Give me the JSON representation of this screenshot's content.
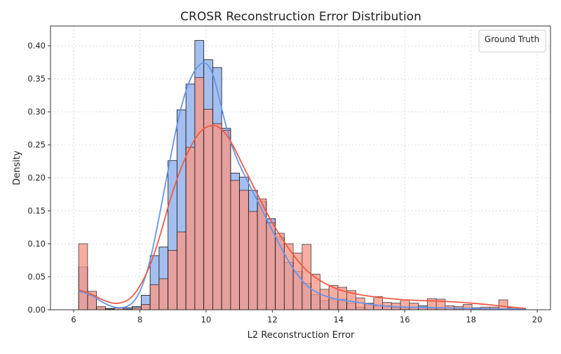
{
  "chart_data": {
    "type": "histogram",
    "title": "CROSR Reconstruction Error Distribution",
    "xlabel": "L2 Reconstruction Error",
    "ylabel": "Density",
    "xlim": [
      5.3,
      20.4
    ],
    "ylim": [
      0,
      0.43
    ],
    "xticks": [
      6,
      8,
      10,
      12,
      14,
      16,
      18,
      20
    ],
    "yticks": [
      0.0,
      0.05,
      0.1,
      0.15,
      0.2,
      0.25,
      0.3,
      0.35,
      0.4
    ],
    "bins": [
      6.15,
      6.42,
      6.69,
      6.96,
      7.23,
      7.5,
      7.77,
      8.04,
      8.31,
      8.58,
      8.85,
      9.12,
      9.39,
      9.66,
      9.93,
      10.2,
      10.47,
      10.74,
      11.01,
      11.28,
      11.55,
      11.82,
      12.09,
      12.36,
      12.63,
      12.9,
      13.17,
      13.44,
      13.71,
      13.98,
      14.25,
      14.52,
      14.79,
      15.06,
      15.33,
      15.6,
      15.87,
      16.14,
      16.41,
      16.68,
      16.95,
      17.22,
      17.49,
      17.76,
      18.03,
      18.3,
      18.57,
      18.84,
      19.11,
      19.38,
      19.65
    ],
    "legend": {
      "title": "Ground Truth",
      "position": "upper right"
    },
    "grid": true,
    "series": [
      {
        "color": "#6495ED",
        "fill": "#A4BFEF",
        "densities": [
          0.065,
          0.022,
          0.003,
          0.002,
          0.002,
          0.003,
          0.005,
          0.022,
          0.082,
          0.095,
          0.226,
          0.303,
          0.342,
          0.408,
          0.379,
          0.367,
          0.275,
          0.207,
          0.201,
          0.181,
          0.164,
          0.138,
          0.11,
          0.072,
          0.058,
          0.04,
          0.023,
          0.014,
          0.016,
          0.016,
          0.01,
          0.004,
          0.009,
          0.006,
          0.006,
          0.003,
          0.002,
          0.003,
          0.006,
          0.002,
          0.002,
          0.003,
          0.001,
          0.002,
          0.002,
          0.002,
          0.002,
          0.001,
          0.001,
          0.001
        ]
      },
      {
        "color": "#EE5A45",
        "fill": "#F7998A",
        "densities": [
          0.1,
          0.028,
          0.005,
          0.001,
          0.003,
          0.001,
          0.003,
          0.008,
          0.038,
          0.047,
          0.09,
          0.118,
          0.246,
          0.352,
          0.304,
          0.282,
          0.272,
          0.196,
          0.181,
          0.149,
          0.168,
          0.132,
          0.116,
          0.1,
          0.086,
          0.099,
          0.054,
          0.031,
          0.037,
          0.034,
          0.029,
          0.018,
          0.01,
          0.02,
          0.011,
          0.01,
          0.015,
          0.01,
          0.003,
          0.017,
          0.016,
          0.006,
          0.005,
          0.008,
          0.003,
          0.004,
          0.004,
          0.015,
          0.003,
          0.002
        ]
      }
    ],
    "kde": [
      {
        "color": "#6495ED",
        "points": [
          [
            6.15,
            0.028
          ],
          [
            6.5,
            0.024
          ],
          [
            6.9,
            0.01
          ],
          [
            7.3,
            0.002
          ],
          [
            7.7,
            0.005
          ],
          [
            8.0,
            0.025
          ],
          [
            8.3,
            0.07
          ],
          [
            8.6,
            0.145
          ],
          [
            8.9,
            0.225
          ],
          [
            9.2,
            0.3
          ],
          [
            9.5,
            0.35
          ],
          [
            9.8,
            0.373
          ],
          [
            10.0,
            0.375
          ],
          [
            10.2,
            0.36
          ],
          [
            10.4,
            0.32
          ],
          [
            10.6,
            0.278
          ],
          [
            10.8,
            0.245
          ],
          [
            11.0,
            0.22
          ],
          [
            11.3,
            0.19
          ],
          [
            11.6,
            0.16
          ],
          [
            11.9,
            0.13
          ],
          [
            12.2,
            0.1
          ],
          [
            12.5,
            0.072
          ],
          [
            12.8,
            0.05
          ],
          [
            13.1,
            0.033
          ],
          [
            13.5,
            0.022
          ],
          [
            14.0,
            0.015
          ],
          [
            14.5,
            0.012
          ],
          [
            15.0,
            0.008
          ],
          [
            15.5,
            0.005
          ],
          [
            16.0,
            0.004
          ],
          [
            17.0,
            0.003
          ],
          [
            18.0,
            0.002
          ],
          [
            19.0,
            0.001
          ],
          [
            19.65,
            0.001
          ]
        ]
      },
      {
        "color": "#EE5A45",
        "points": [
          [
            6.15,
            0.03
          ],
          [
            6.5,
            0.025
          ],
          [
            6.9,
            0.014
          ],
          [
            7.3,
            0.008
          ],
          [
            7.7,
            0.015
          ],
          [
            8.0,
            0.035
          ],
          [
            8.3,
            0.065
          ],
          [
            8.6,
            0.11
          ],
          [
            8.9,
            0.165
          ],
          [
            9.2,
            0.21
          ],
          [
            9.5,
            0.245
          ],
          [
            9.8,
            0.27
          ],
          [
            10.1,
            0.28
          ],
          [
            10.4,
            0.278
          ],
          [
            10.7,
            0.26
          ],
          [
            11.0,
            0.23
          ],
          [
            11.3,
            0.2
          ],
          [
            11.6,
            0.17
          ],
          [
            11.9,
            0.14
          ],
          [
            12.2,
            0.115
          ],
          [
            12.5,
            0.092
          ],
          [
            12.8,
            0.072
          ],
          [
            13.1,
            0.056
          ],
          [
            13.5,
            0.042
          ],
          [
            14.0,
            0.03
          ],
          [
            14.5,
            0.024
          ],
          [
            15.0,
            0.02
          ],
          [
            15.5,
            0.017
          ],
          [
            16.0,
            0.015
          ],
          [
            16.5,
            0.014
          ],
          [
            17.0,
            0.013
          ],
          [
            17.5,
            0.012
          ],
          [
            18.0,
            0.01
          ],
          [
            18.5,
            0.008
          ],
          [
            19.0,
            0.005
          ],
          [
            19.65,
            0.002
          ]
        ]
      }
    ]
  }
}
